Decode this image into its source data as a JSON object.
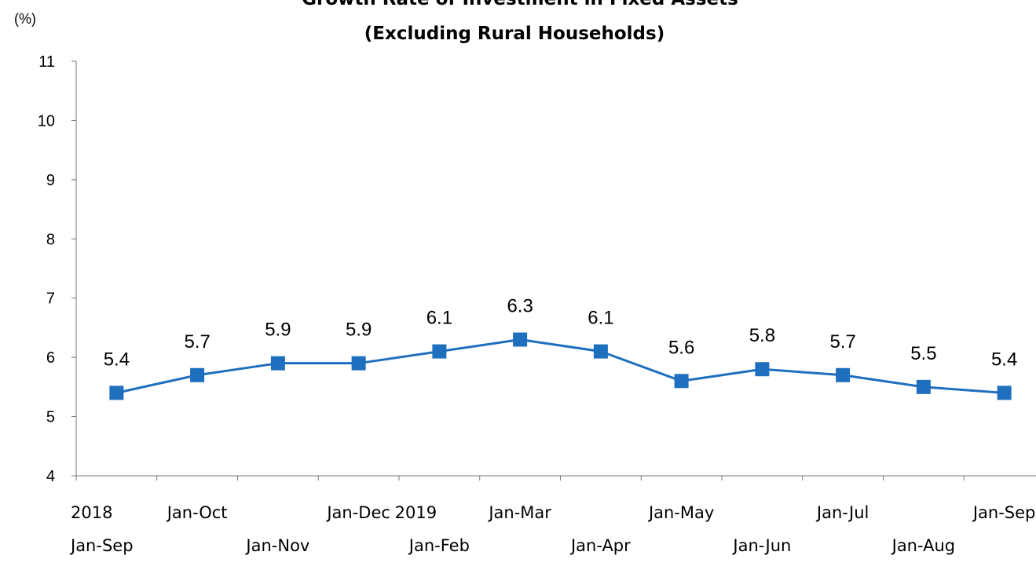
{
  "chart_data": {
    "type": "line",
    "title": "Growth Rate of Investment in Fixed Assets",
    "subtitle": "(Excluding Rural Households)",
    "unit_label": "(%)",
    "ylim": [
      4,
      11
    ],
    "yticks": [
      4,
      5,
      6,
      7,
      8,
      9,
      10,
      11
    ],
    "grid": false,
    "categories": [
      {
        "lines": [
          "2018",
          "Jan-Sep"
        ],
        "row": 1
      },
      {
        "lines": [
          "Jan-Oct"
        ],
        "row": 1
      },
      {
        "lines": [
          "Jan-Nov"
        ],
        "row": 2
      },
      {
        "lines": [
          "Jan-Dec"
        ],
        "row": 1
      },
      {
        "lines": [
          "2019",
          "Jan-Feb"
        ],
        "row": 1
      },
      {
        "lines": [
          "Jan-Mar"
        ],
        "row": 1
      },
      {
        "lines": [
          "Jan-Apr"
        ],
        "row": 2
      },
      {
        "lines": [
          "Jan-May"
        ],
        "row": 1
      },
      {
        "lines": [
          "Jan-Jun"
        ],
        "row": 2
      },
      {
        "lines": [
          "Jan-Jul"
        ],
        "row": 1
      },
      {
        "lines": [
          "Jan-Aug"
        ],
        "row": 2
      },
      {
        "lines": [
          "Jan-Sep"
        ],
        "row": 1
      }
    ],
    "series": [
      {
        "values": [
          5.4,
          5.7,
          5.9,
          5.9,
          6.1,
          6.3,
          6.1,
          5.6,
          5.8,
          5.7,
          5.5,
          5.4
        ],
        "data_labels": [
          "5.4",
          "5.7",
          "5.9",
          "5.9",
          "6.1",
          "6.3",
          "6.1",
          "5.6",
          "5.8",
          "5.7",
          "5.5",
          "5.4"
        ],
        "color": "#1f6fbf"
      }
    ]
  }
}
